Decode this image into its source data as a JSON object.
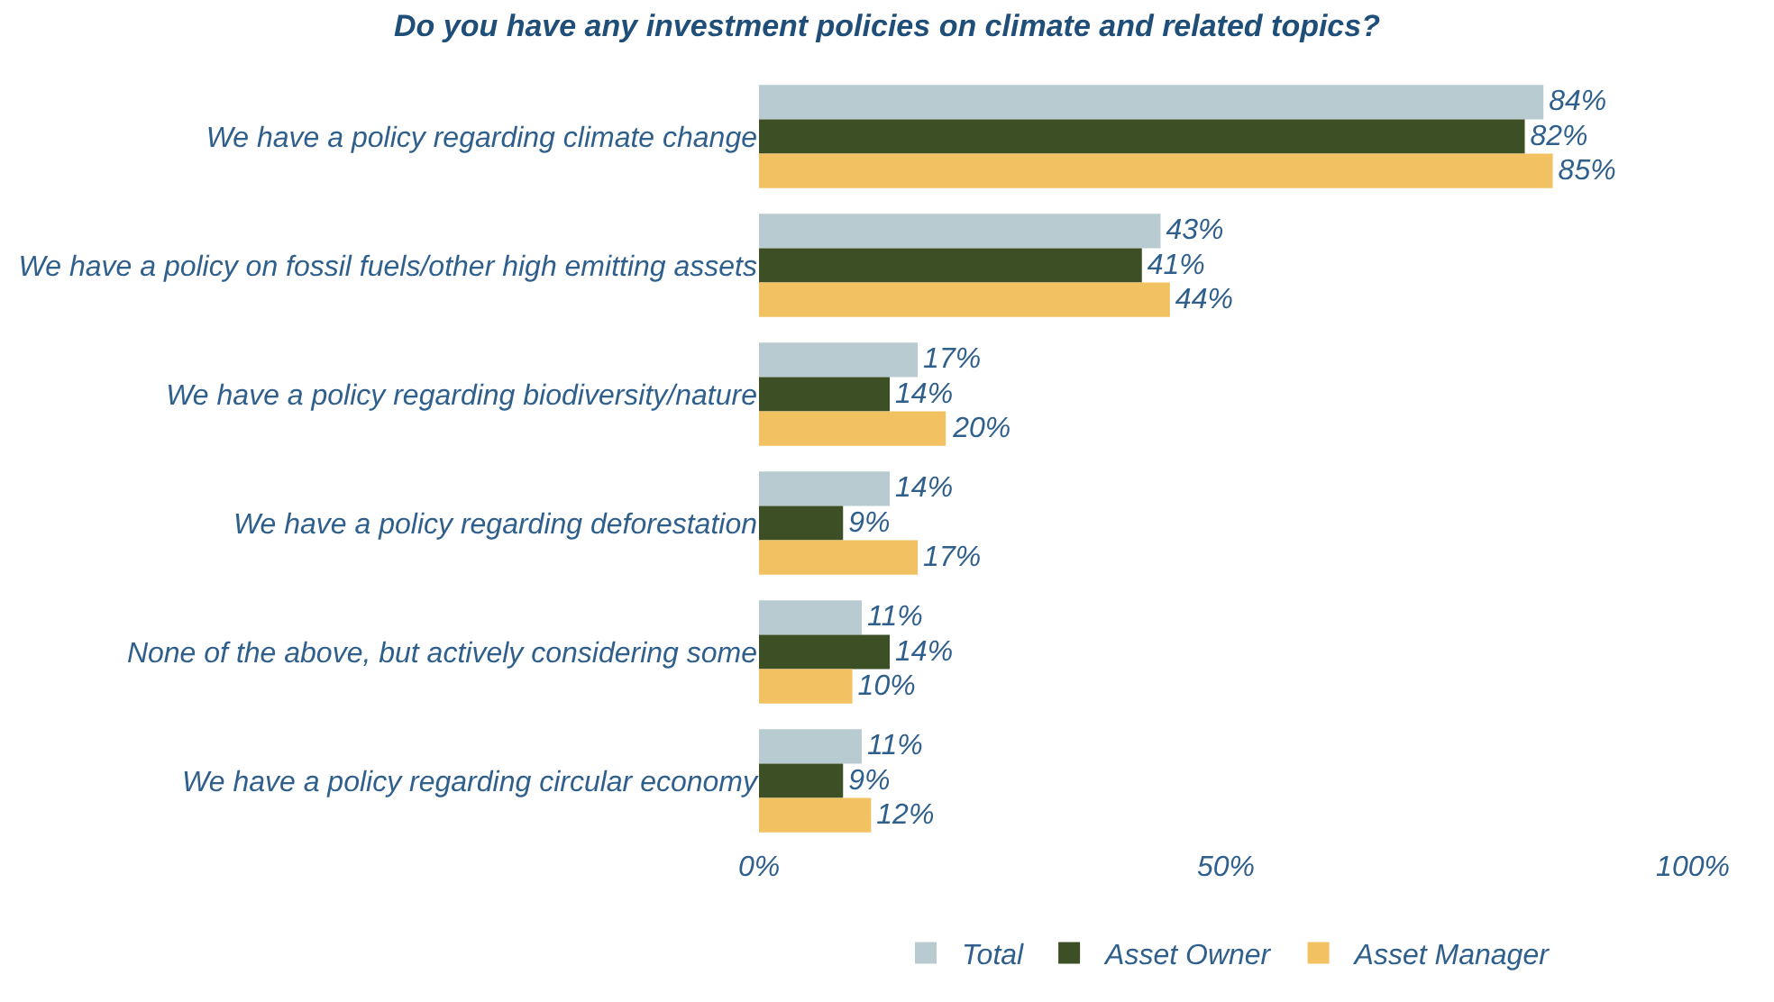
{
  "chart_data": {
    "type": "bar",
    "orientation": "horizontal",
    "title": "Do you have any investment policies on climate and related topics?",
    "categories": [
      "We have a policy regarding climate change",
      "We have a policy on fossil fuels/other high emitting assets",
      "We have a policy regarding biodiversity/nature",
      "We have a policy regarding deforestation",
      "None of the above, but actively considering some",
      "We have a policy regarding circular economy"
    ],
    "series": [
      {
        "name": "Total",
        "color": "#b8cbd0",
        "values": [
          84,
          43,
          17,
          14,
          11,
          11
        ],
        "value_labels": [
          "84%",
          "43%",
          "17%",
          "14%",
          "11%",
          "11%"
        ]
      },
      {
        "name": "Asset Owner",
        "color": "#3d4f24",
        "values": [
          82,
          41,
          14,
          9,
          14,
          9
        ],
        "value_labels": [
          "82%",
          "41%",
          "14%",
          "9%",
          "14%",
          "9%"
        ]
      },
      {
        "name": "Asset Manager",
        "color": "#f2c162",
        "values": [
          85,
          44,
          20,
          17,
          10,
          12
        ],
        "value_labels": [
          "85%",
          "44%",
          "20%",
          "17%",
          "10%",
          "12%"
        ]
      }
    ],
    "xlim": [
      0,
      100
    ],
    "xticks": [
      {
        "value": 0,
        "label": "0%"
      },
      {
        "value": 50,
        "label": "50%"
      },
      {
        "value": 100,
        "label": "100%"
      }
    ],
    "grid": false,
    "legend": "bottom"
  }
}
